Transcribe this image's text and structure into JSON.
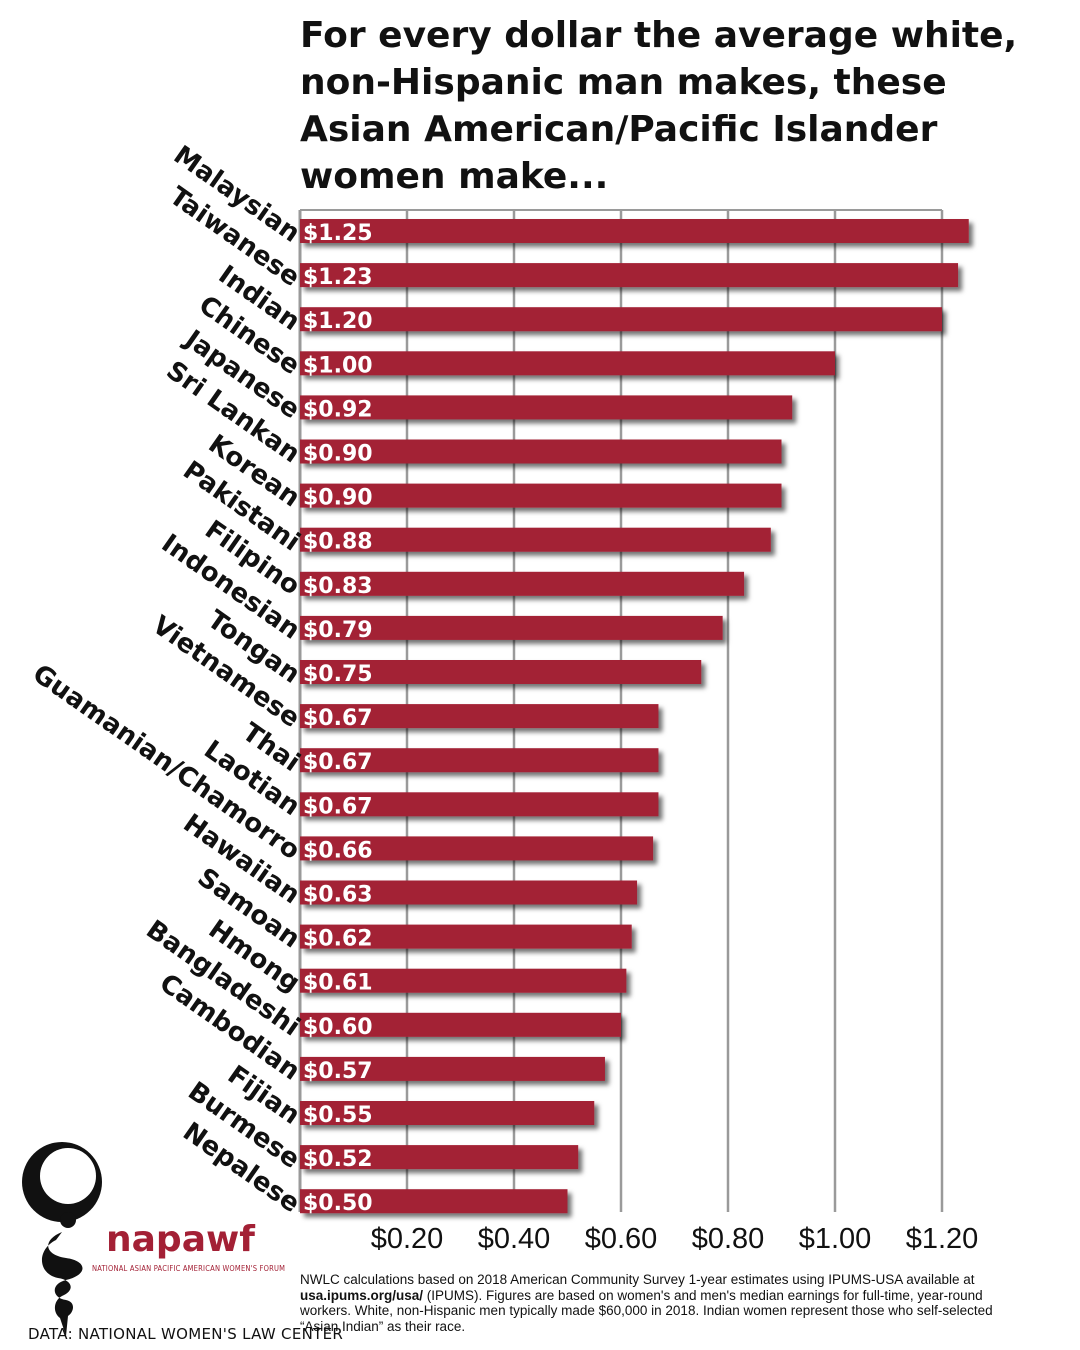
{
  "chart_data": {
    "type": "bar",
    "orientation": "horizontal",
    "title": "For every dollar the average white, non-Hispanic man makes, these Asian American/Pacific Islander women make...",
    "categories": [
      "Malaysian",
      "Taiwanese",
      "Indian",
      "Chinese",
      "Japanese",
      "Sri Lankan",
      "Korean",
      "Pakistani",
      "Filipino",
      "Indonesian",
      "Tongan",
      "Vietnamese",
      "Thai",
      "Laotian",
      "Guamanian/Chamorro",
      "Hawaiian",
      "Samoan",
      "Hmong",
      "Bangladeshi",
      "Cambodian",
      "Fijian",
      "Burmese",
      "Nepalese"
    ],
    "values": [
      1.25,
      1.23,
      1.2,
      1.0,
      0.92,
      0.9,
      0.9,
      0.88,
      0.83,
      0.79,
      0.75,
      0.67,
      0.67,
      0.67,
      0.66,
      0.63,
      0.62,
      0.61,
      0.6,
      0.57,
      0.55,
      0.52,
      0.5
    ],
    "value_labels": [
      "$1.25",
      "$1.23",
      "$1.20",
      "$1.00",
      "$0.92",
      "$0.90",
      "$0.90",
      "$0.88",
      "$0.83",
      "$0.79",
      "$0.75",
      "$0.67",
      "$0.67",
      "$0.67",
      "$0.66",
      "$0.63",
      "$0.62",
      "$0.61",
      "$0.60",
      "$0.57",
      "$0.55",
      "$0.52",
      "$0.50"
    ],
    "x_ticks": [
      0.2,
      0.4,
      0.6,
      0.8,
      1.0,
      1.2
    ],
    "x_tick_labels": [
      "$0.20",
      "$0.40",
      "$0.60",
      "$0.80",
      "$1.00",
      "$1.20"
    ],
    "xlim": [
      0,
      1.2
    ],
    "grid": true,
    "bar_color": "#a32035",
    "label_color": "#ffffff"
  },
  "logo": {
    "name": "napawf",
    "subtitle": "NATIONAL ASIAN PACIFIC AMERICAN WOMEN'S FORUM",
    "icon": "napawf-logo-icon",
    "color": "#a32035"
  },
  "data_credit": "DATA: NATIONAL WOMEN'S LAW CENTER",
  "source_note": {
    "part1": "NWLC calculations based on 2018 American Community Survey 1-year estimates using IPUMS-USA available at ",
    "link": "usa.ipums.org/usa/",
    "part2": " (IPUMS). Figures are based on women's and men's median earnings for full-time, year-round workers. White, non-Hispanic men typically made $60,000 in 2018. Indian women represent those who self-selected “Asian Indian” as their race."
  }
}
